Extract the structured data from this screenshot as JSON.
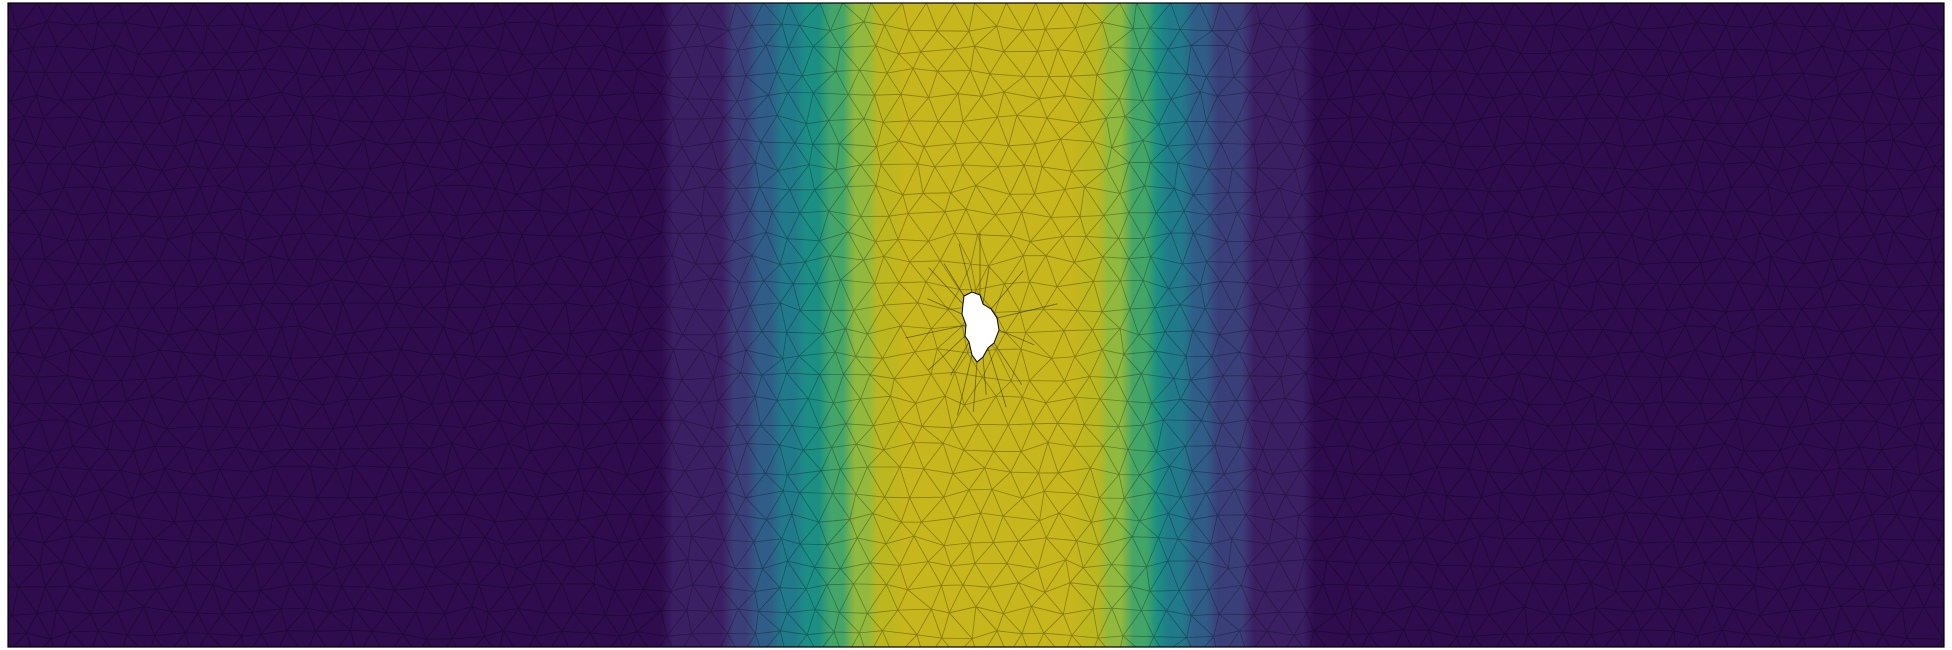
{
  "figure": {
    "kind": "finite-element mesh field plot",
    "colormap": "viridis",
    "colormap_stops": [
      "#2e0c4d",
      "#3a1f63",
      "#3b3f79",
      "#2f5d87",
      "#217a8a",
      "#1c8f84",
      "#43a568",
      "#90b93d",
      "#bdb71f",
      "#c7b61c"
    ],
    "mesh": {
      "element_type": "triangle",
      "edge_color": "#000000",
      "edge_opacity": 0.32
    },
    "domain_frame_color": "#000000",
    "hole": {
      "fill": "#ffffff",
      "outline_color": "#000000"
    },
    "field_profile": {
      "peak_x_fraction": 0.505,
      "core_half_width_fraction": 0.026,
      "spread_fraction": 0.078
    }
  }
}
